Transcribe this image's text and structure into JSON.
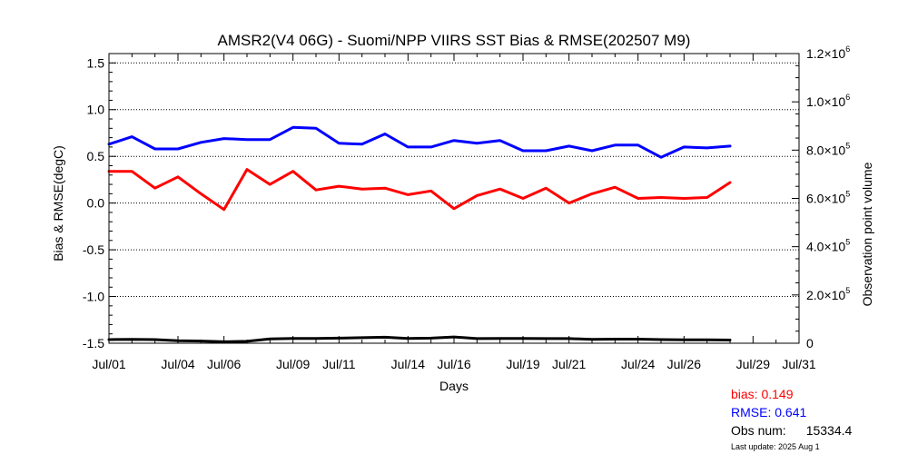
{
  "chart_data": {
    "type": "line",
    "title": "AMSR2(V4 06G) - Suomi/NPP VIIRS SST Bias & RMSE(202507 M9)",
    "xlabel": "Days",
    "ylabel": "Bias & RMSE(degC)",
    "y2label": "Observation point volume",
    "xlim": [
      1,
      31
    ],
    "ylim": [
      -1.5,
      1.6
    ],
    "y2lim": [
      0,
      1200000
    ],
    "x_ticks": [
      1,
      4,
      6,
      9,
      11,
      14,
      16,
      19,
      21,
      24,
      26,
      29,
      31
    ],
    "x_tick_labels": [
      "Jul/01",
      "Jul/04",
      "Jul/06",
      "Jul/09",
      "Jul/11",
      "Jul/14",
      "Jul/16",
      "Jul/19",
      "Jul/21",
      "Jul/24",
      "Jul/26",
      "Jul/29",
      "Jul/31"
    ],
    "y_ticks": [
      -1.5,
      -1.0,
      -0.5,
      0.0,
      0.5,
      1.0,
      1.5
    ],
    "y_tick_labels": [
      "-1.5",
      "-1.0",
      "-0.5",
      "0.0",
      "0.5",
      "1.0",
      "1.5"
    ],
    "y2_ticks": [
      0,
      200000,
      400000,
      600000,
      800000,
      1000000,
      1200000
    ],
    "y2_tick_labels": [
      {
        "mantissa": "0",
        "exp": ""
      },
      {
        "mantissa": "2.0×10",
        "exp": "5"
      },
      {
        "mantissa": "4.0×10",
        "exp": "5"
      },
      {
        "mantissa": "6.0×10",
        "exp": "5"
      },
      {
        "mantissa": "8.0×10",
        "exp": "5"
      },
      {
        "mantissa": "1.0×10",
        "exp": "6"
      },
      {
        "mantissa": "1.2×10",
        "exp": "6"
      }
    ],
    "grid": "horizontal dotted",
    "series": [
      {
        "name": "bias",
        "color": "#ff0000",
        "axis": "left",
        "x": [
          1,
          2,
          3,
          4,
          5,
          6,
          7,
          8,
          9,
          10,
          11,
          12,
          13,
          14,
          15,
          16,
          17,
          18,
          19,
          20,
          21,
          22,
          23,
          24,
          25,
          26,
          27,
          28
        ],
        "values": [
          0.34,
          0.34,
          0.16,
          0.28,
          0.1,
          -0.07,
          0.36,
          0.2,
          0.34,
          0.14,
          0.18,
          0.15,
          0.16,
          0.09,
          0.13,
          -0.06,
          0.08,
          0.15,
          0.05,
          0.16,
          0.0,
          0.1,
          0.17,
          0.05,
          0.06,
          0.05,
          0.06,
          0.22
        ]
      },
      {
        "name": "RMSE",
        "color": "#0000ff",
        "axis": "left",
        "x": [
          1,
          2,
          3,
          4,
          5,
          6,
          7,
          8,
          9,
          10,
          11,
          12,
          13,
          14,
          15,
          16,
          17,
          18,
          19,
          20,
          21,
          22,
          23,
          24,
          25,
          26,
          27,
          28
        ],
        "values": [
          0.63,
          0.71,
          0.58,
          0.58,
          0.65,
          0.69,
          0.68,
          0.68,
          0.81,
          0.8,
          0.64,
          0.63,
          0.74,
          0.6,
          0.6,
          0.67,
          0.64,
          0.67,
          0.56,
          0.56,
          0.61,
          0.56,
          0.62,
          0.62,
          0.49,
          0.6,
          0.59,
          0.61
        ]
      },
      {
        "name": "Obs num",
        "color": "#000000",
        "axis": "right",
        "x": [
          1,
          2,
          3,
          4,
          5,
          6,
          7,
          8,
          9,
          10,
          11,
          12,
          13,
          14,
          15,
          16,
          17,
          18,
          19,
          20,
          21,
          22,
          23,
          24,
          25,
          26,
          27,
          28
        ],
        "values": [
          15000,
          16000,
          15000,
          10000,
          9000,
          6000,
          8000,
          18000,
          20000,
          20000,
          21000,
          23000,
          25000,
          20000,
          21000,
          26000,
          19000,
          20000,
          20000,
          19000,
          19000,
          16000,
          17000,
          17000,
          15000,
          14000,
          14000,
          13000
        ]
      }
    ]
  },
  "stats": {
    "bias_label": "bias: 0.149",
    "rmse_label": "RMSE: 0.641",
    "obs_label": "Obs num:",
    "obs_value": "15334.4"
  },
  "last_update": "Last update: 2025 Aug  1"
}
